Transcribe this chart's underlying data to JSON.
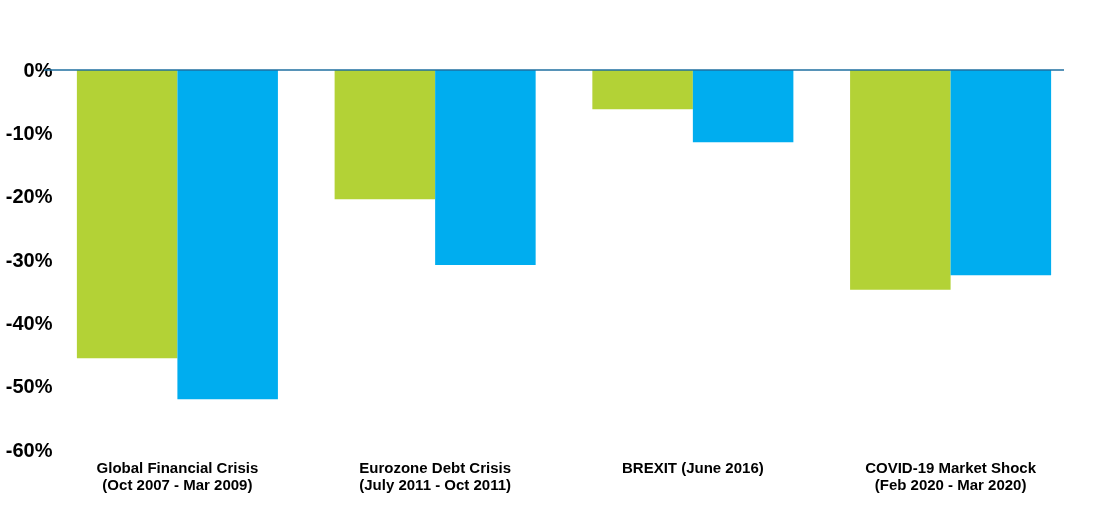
{
  "chart_data": {
    "type": "bar",
    "categories": [
      "Global Financial Crisis\n(Oct 2007 - Mar 2009)",
      "Eurozone Debt Crisis\n(July 2011 - Oct 2011)",
      "BREXIT (June 2016)",
      "COVID-19 Market Shock\n(Feb 2020 - Mar 2020)"
    ],
    "series": [
      {
        "color": "#b3d236",
        "values": [
          -45.5,
          -20.4,
          -6.2,
          -34.7
        ]
      },
      {
        "color": "#00adef",
        "values": [
          -52.0,
          -30.8,
          -11.4,
          -32.4
        ]
      }
    ],
    "ylim": [
      -60,
      0
    ],
    "yticks": [
      {
        "value": -60,
        "label": "-60%"
      },
      {
        "value": -50,
        "label": "-50%"
      },
      {
        "value": -40,
        "label": "-40%"
      },
      {
        "value": -30,
        "label": "-30%"
      },
      {
        "value": -20,
        "label": "-20%"
      },
      {
        "value": -10,
        "label": "-10%"
      },
      {
        "value": 0,
        "label": "0%"
      }
    ],
    "grid": false
  }
}
